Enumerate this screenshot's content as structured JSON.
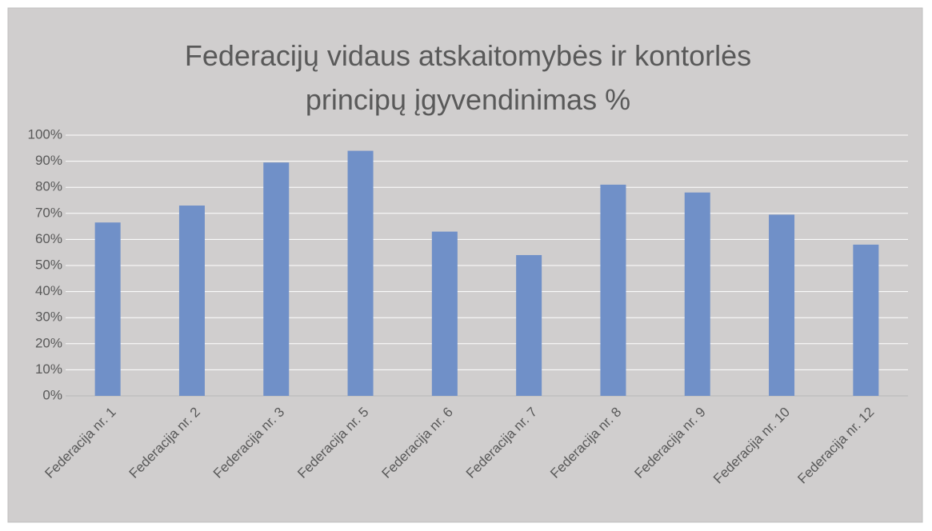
{
  "chart_data": {
    "type": "bar",
    "title": "Federacijų vidaus atskaitomybės ir kontorlės principų įgyvendinimas %",
    "categories": [
      "Federacija nr. 1",
      "Federacija nr. 2",
      "Federacija nr. 3",
      "Federacija nr. 5",
      "Federacija nr. 6",
      "Federacija nr. 7",
      "Federacija nr. 8",
      "Federacija nr. 9",
      "Federacija nr. 10",
      "Federacija nr. 12"
    ],
    "values": [
      66.5,
      73,
      89.5,
      94,
      63,
      54,
      81,
      78,
      69.5,
      58
    ],
    "color": "#7090c8",
    "ylim": [
      0,
      100
    ],
    "yticks": [
      {
        "value": 0,
        "label": "0%"
      },
      {
        "value": 10,
        "label": "10%"
      },
      {
        "value": 20,
        "label": "20%"
      },
      {
        "value": 30,
        "label": "30%"
      },
      {
        "value": 40,
        "label": "40%"
      },
      {
        "value": 50,
        "label": "50%"
      },
      {
        "value": 60,
        "label": "60%"
      },
      {
        "value": 70,
        "label": "70%"
      },
      {
        "value": 80,
        "label": "80%"
      },
      {
        "value": 90,
        "label": "90%"
      },
      {
        "value": 100,
        "label": "100%"
      }
    ],
    "grid": true
  }
}
